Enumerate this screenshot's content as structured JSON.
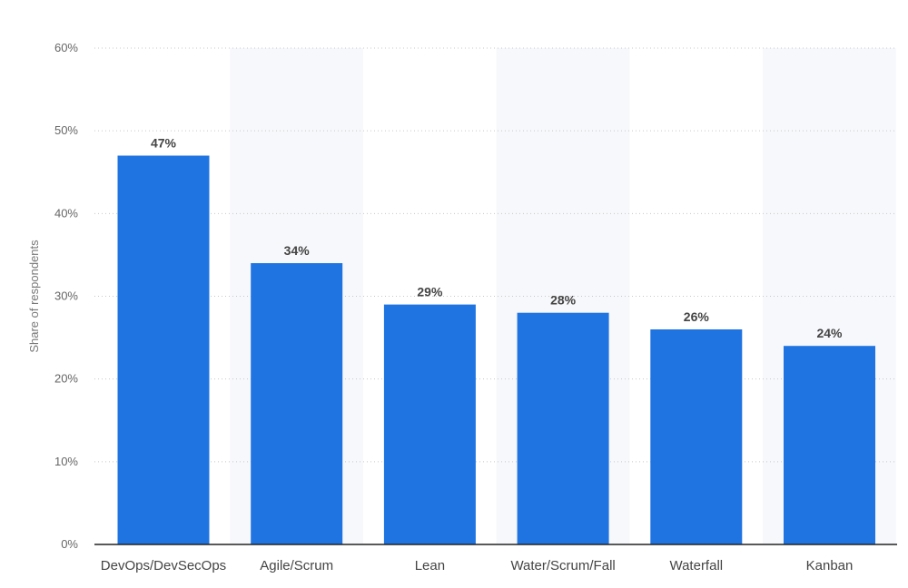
{
  "chart_data": {
    "type": "bar",
    "categories": [
      "DevOps/DevSecOps",
      "Agile/Scrum",
      "Lean",
      "Water/Scrum/Fall",
      "Waterfall",
      "Kanban"
    ],
    "values": [
      47,
      34,
      29,
      28,
      26,
      24
    ],
    "value_labels": [
      "47%",
      "34%",
      "29%",
      "28%",
      "26%",
      "24%"
    ],
    "title": "",
    "xlabel": "",
    "ylabel": "Share of respondents",
    "ylim": [
      0,
      60
    ],
    "yticks": [
      0,
      10,
      20,
      30,
      40,
      50,
      60
    ],
    "ytick_labels": [
      "0%",
      "10%",
      "20%",
      "30%",
      "40%",
      "50%",
      "60%"
    ],
    "grid": true,
    "legend": "none",
    "bar_color": "#1f74e2",
    "band_color": "#f7f8fb"
  }
}
